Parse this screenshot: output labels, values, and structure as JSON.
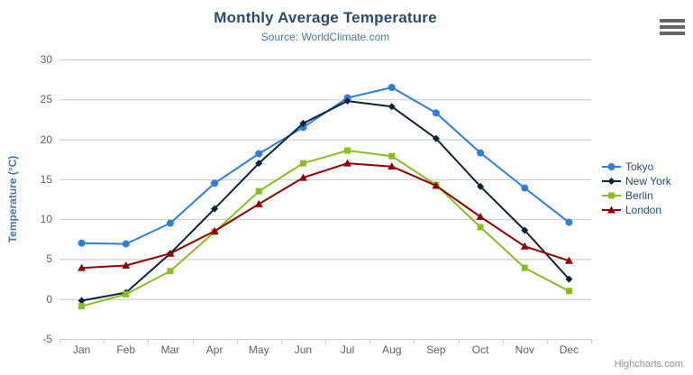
{
  "header": {
    "title": "Monthly Average Temperature",
    "subtitle": "Source: WorldClimate.com"
  },
  "icons": {
    "context_menu": "hamburger-icon"
  },
  "credits": {
    "label": "Highcharts.com"
  },
  "chart_data": {
    "type": "line",
    "title": "Monthly Average Temperature",
    "subtitle": "Source: WorldClimate.com",
    "xlabel": "",
    "ylabel": "Temperature (°C)",
    "categories": [
      "Jan",
      "Feb",
      "Mar",
      "Apr",
      "May",
      "Jun",
      "Jul",
      "Aug",
      "Sep",
      "Oct",
      "Nov",
      "Dec"
    ],
    "series": [
      {
        "name": "Tokyo",
        "color": "#2f7ed8",
        "marker": "circle",
        "values": [
          7.0,
          6.9,
          9.5,
          14.5,
          18.2,
          21.5,
          25.2,
          26.5,
          23.3,
          18.3,
          13.9,
          9.6
        ]
      },
      {
        "name": "New York",
        "color": "#0d233a",
        "marker": "diamond",
        "values": [
          -0.2,
          0.8,
          5.7,
          11.3,
          17.0,
          22.0,
          24.8,
          24.1,
          20.1,
          14.1,
          8.6,
          2.5
        ]
      },
      {
        "name": "Berlin",
        "color": "#8bbc21",
        "marker": "square",
        "values": [
          -0.9,
          0.6,
          3.5,
          8.4,
          13.5,
          17.0,
          18.6,
          17.9,
          14.3,
          9.0,
          3.9,
          1.0
        ]
      },
      {
        "name": "London",
        "color": "#910000",
        "marker": "triangle",
        "values": [
          3.9,
          4.2,
          5.7,
          8.5,
          11.9,
          15.2,
          17.0,
          16.6,
          14.2,
          10.3,
          6.6,
          4.8
        ]
      }
    ],
    "ylim": [
      -5,
      30
    ],
    "yticks": [
      -5,
      0,
      5,
      10,
      15,
      20,
      25,
      30
    ],
    "grid": true,
    "legend_position": "right",
    "colors": {
      "title_text": "#274b6d",
      "subtitle_text": "#4d759e",
      "axis_label_text": "#606060",
      "axis_title_text": "#4d759e",
      "gridline": "#c8c8c8",
      "axis_line": "#c0d0e0",
      "legend_text": "#274b6d",
      "credits_text": "#909090",
      "menu_icon": "#666666"
    }
  }
}
